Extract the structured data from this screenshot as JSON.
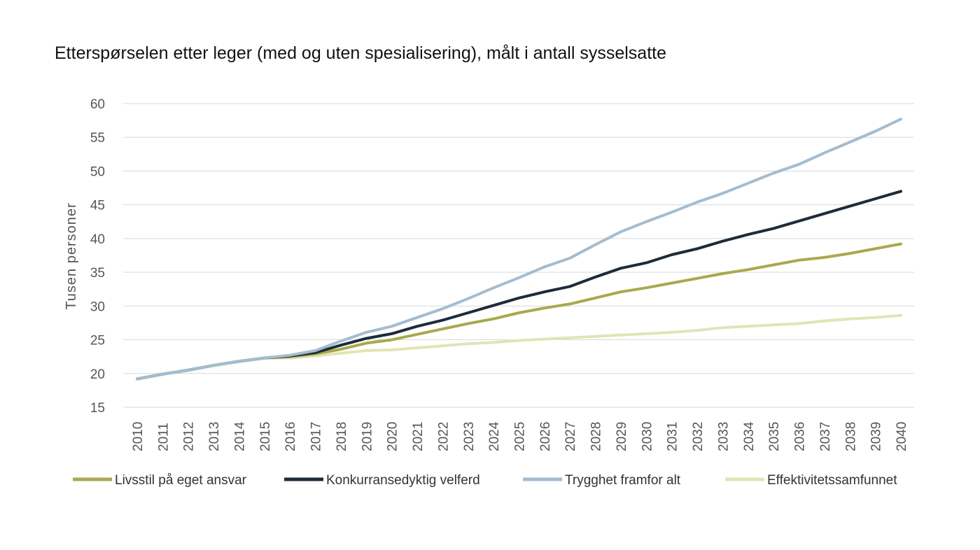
{
  "chart_data": {
    "type": "line",
    "title": "Etterspørselen etter leger (med og uten spesialisering), målt i antall sysselsatte",
    "xlabel": "",
    "ylabel": "Tusen personer",
    "ylim": [
      15,
      60
    ],
    "yticks": [
      15,
      20,
      25,
      30,
      35,
      40,
      45,
      50,
      55,
      60
    ],
    "grid": true,
    "legend_position": "bottom",
    "categories": [
      "2010",
      "2011",
      "2012",
      "2013",
      "2014",
      "2015",
      "2016",
      "2017",
      "2018",
      "2019",
      "2020",
      "2021",
      "2022",
      "2023",
      "2024",
      "2025",
      "2026",
      "2027",
      "2028",
      "2029",
      "2030",
      "2031",
      "2032",
      "2033",
      "2034",
      "2035",
      "2036",
      "2037",
      "2038",
      "2039",
      "2040"
    ],
    "series": [
      {
        "name": "Livsstil på eget ansvar",
        "color": "#a9a94e",
        "values": [
          19.2,
          19.9,
          20.5,
          21.2,
          21.8,
          22.3,
          22.5,
          22.9,
          23.6,
          24.5,
          25.0,
          25.8,
          26.6,
          27.4,
          28.1,
          29.0,
          29.7,
          30.3,
          31.2,
          32.1,
          32.7,
          33.4,
          34.1,
          34.8,
          35.4,
          36.1,
          36.8,
          37.2,
          37.8,
          38.5,
          39.2
        ]
      },
      {
        "name": "Konkurransedyktig velferd",
        "color": "#1d2b3a",
        "values": [
          19.2,
          19.9,
          20.5,
          21.2,
          21.8,
          22.3,
          22.6,
          23.1,
          24.2,
          25.2,
          25.9,
          27.0,
          27.9,
          29.0,
          30.1,
          31.2,
          32.1,
          32.9,
          34.3,
          35.6,
          36.4,
          37.6,
          38.5,
          39.6,
          40.6,
          41.5,
          42.6,
          43.7,
          44.8,
          45.9,
          47.0
        ]
      },
      {
        "name": "Trygghet framfor alt",
        "color": "#a4bccf",
        "values": [
          19.2,
          19.9,
          20.5,
          21.2,
          21.8,
          22.3,
          22.7,
          23.4,
          24.8,
          26.1,
          27.0,
          28.3,
          29.6,
          31.1,
          32.7,
          34.2,
          35.8,
          37.1,
          39.1,
          41.0,
          42.5,
          43.9,
          45.4,
          46.7,
          48.2,
          49.7,
          51.0,
          52.7,
          54.3,
          55.9,
          57.7
        ]
      },
      {
        "name": "Effektivitetssamfunnet",
        "color": "#e2e4b6",
        "values": [
          19.2,
          19.9,
          20.5,
          21.2,
          21.8,
          22.3,
          22.3,
          22.6,
          23.0,
          23.4,
          23.5,
          23.8,
          24.1,
          24.4,
          24.6,
          24.9,
          25.1,
          25.3,
          25.5,
          25.7,
          25.9,
          26.1,
          26.4,
          26.8,
          27.0,
          27.2,
          27.4,
          27.8,
          28.1,
          28.3,
          28.6
        ]
      }
    ]
  }
}
